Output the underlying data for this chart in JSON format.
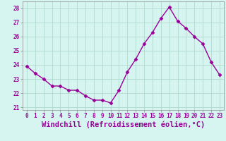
{
  "x": [
    0,
    1,
    2,
    3,
    4,
    5,
    6,
    7,
    8,
    9,
    10,
    11,
    12,
    13,
    14,
    15,
    16,
    17,
    18,
    19,
    20,
    21,
    22,
    23
  ],
  "y": [
    23.9,
    23.4,
    23.0,
    22.5,
    22.5,
    22.2,
    22.2,
    21.8,
    21.5,
    21.5,
    21.3,
    22.2,
    23.5,
    24.4,
    25.5,
    26.3,
    27.3,
    28.1,
    27.1,
    26.6,
    26.0,
    25.5,
    24.2,
    23.3
  ],
  "line_color": "#990099",
  "marker": "D",
  "marker_size": 2.5,
  "bg_color": "#d6f5f0",
  "grid_color": "#b0d9cc",
  "xlabel": "Windchill (Refroidissement éolien,°C)",
  "ylabel": "",
  "ylim": [
    20.8,
    28.5
  ],
  "yticks": [
    21,
    22,
    23,
    24,
    25,
    26,
    27,
    28
  ],
  "xlim": [
    -0.5,
    23.5
  ],
  "xticks": [
    0,
    1,
    2,
    3,
    4,
    5,
    6,
    7,
    8,
    9,
    10,
    11,
    12,
    13,
    14,
    15,
    16,
    17,
    18,
    19,
    20,
    21,
    22,
    23
  ],
  "tick_label_size": 5.5,
  "xlabel_size": 7.5,
  "line_width": 1.0
}
